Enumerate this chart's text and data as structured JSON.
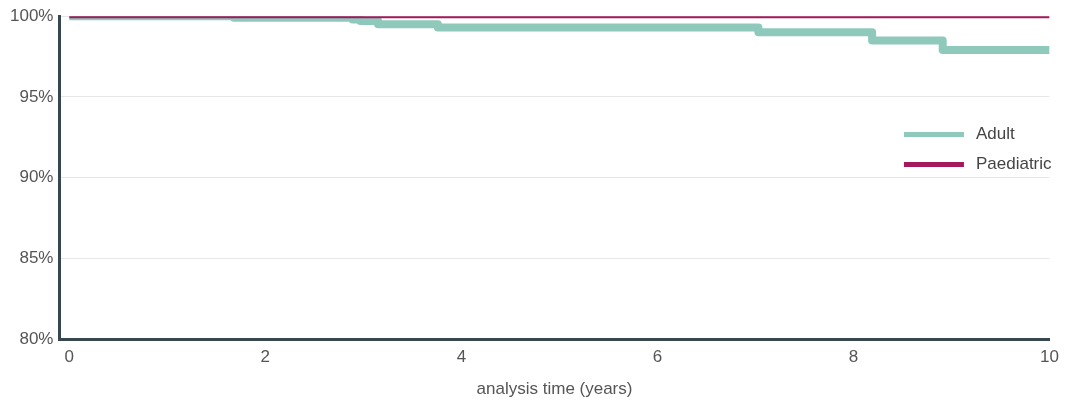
{
  "chart_data": {
    "type": "step",
    "xlabel": "analysis time (years)",
    "series": [
      {
        "name": "Adult",
        "color": "#8ec9bc",
        "x": [
          0,
          1.68,
          2.89,
          2.97,
          3.15,
          3.76,
          7.03,
          8.19,
          8.91,
          10
        ],
        "values": [
          100,
          99.9,
          99.8,
          99.7,
          99.5,
          99.3,
          99.0,
          98.5,
          97.9,
          97.9
        ]
      },
      {
        "name": "Paediatric",
        "color": "#a3195b",
        "x": [
          0,
          10
        ],
        "values": [
          100,
          100
        ]
      }
    ],
    "xlim": [
      -0.1,
      10
    ],
    "xticks": [
      0,
      2,
      4,
      6,
      8,
      10
    ],
    "ylim": [
      80,
      100
    ],
    "yticks": [
      {
        "value": 80,
        "label": "80%"
      },
      {
        "value": 85,
        "label": "85%"
      },
      {
        "value": 90,
        "label": "90%"
      },
      {
        "value": 95,
        "label": "95%"
      },
      {
        "value": 100,
        "label": "100%"
      }
    ],
    "grid": "y",
    "legend": "right",
    "marker": "none",
    "line_style": "solid"
  }
}
